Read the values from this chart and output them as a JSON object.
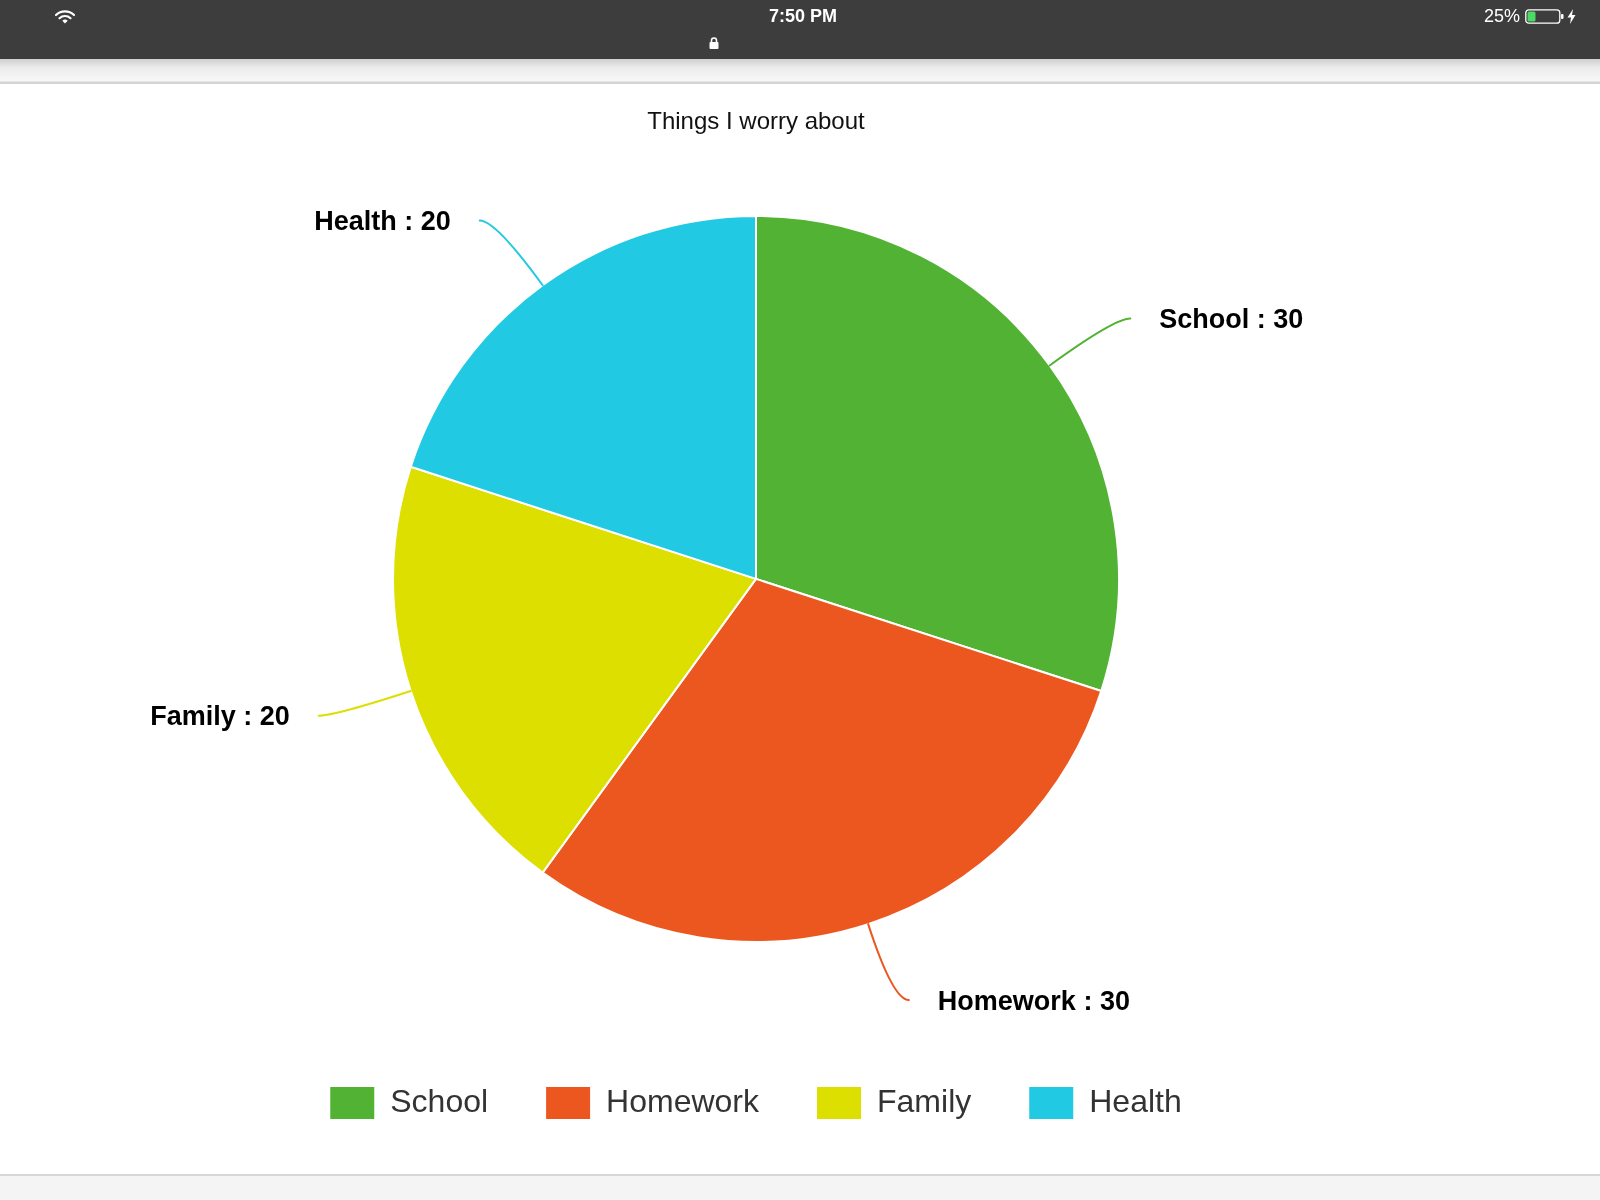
{
  "chart_data": {
    "type": "pie",
    "title": "Things I worry about",
    "categories": [
      "School",
      "Homework",
      "Family",
      "Health"
    ],
    "values": [
      30,
      30,
      20,
      20
    ],
    "colors": [
      "#52b233",
      "#eb571f",
      "#dcdf00",
      "#22c9e3"
    ],
    "value_labels": [
      "School : 30",
      "Homework : 30",
      "Family : 20",
      "Health : 20"
    ],
    "legend": "bottom",
    "annotations": [
      "7:50 PM",
      "25%"
    ]
  }
}
